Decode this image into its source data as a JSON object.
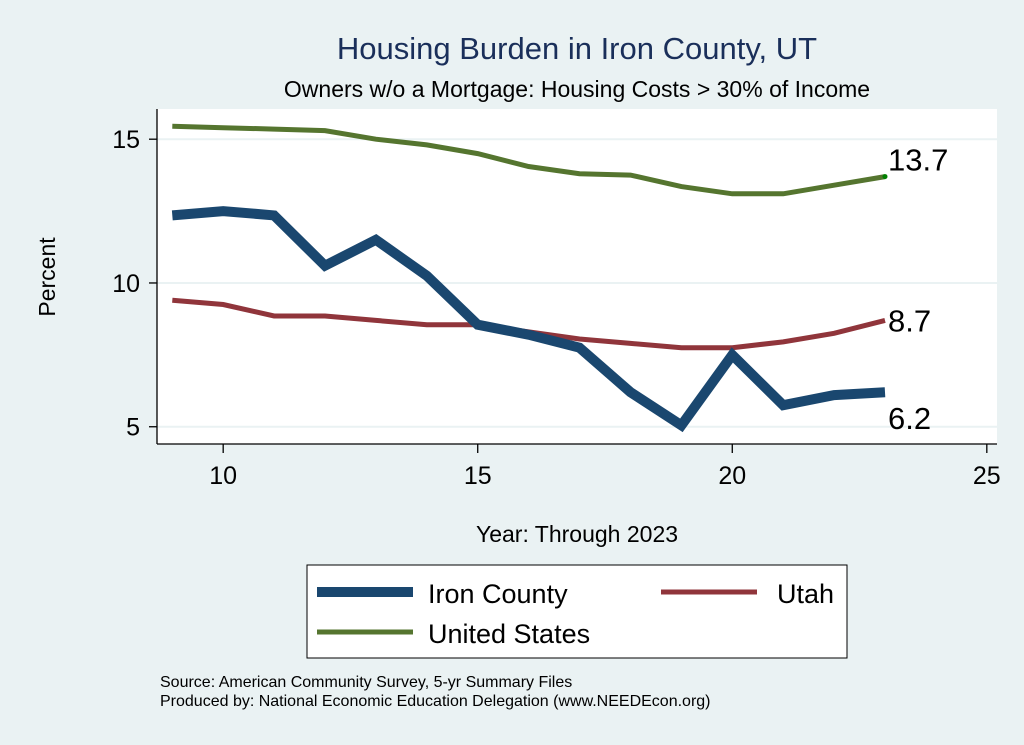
{
  "chart_data": {
    "type": "line",
    "title": "Housing Burden in Iron County, UT",
    "subtitle": "Owners w/o a Mortgage: Housing Costs > 30% of Income",
    "xlabel": "Year: Through 2023",
    "ylabel": "Percent",
    "xlim": [
      8.7,
      25.2
    ],
    "ylim": [
      4.4,
      16.05
    ],
    "xticks": [
      10,
      15,
      20,
      25
    ],
    "yticks": [
      5,
      10,
      15
    ],
    "grid": true,
    "x": [
      9,
      10,
      11,
      12,
      13,
      14,
      15,
      16,
      17,
      18,
      19,
      20,
      21,
      22,
      23
    ],
    "series": [
      {
        "name": "Iron County",
        "color": "#1a476f",
        "values": [
          12.35,
          12.5,
          12.35,
          10.6,
          11.5,
          10.25,
          8.55,
          8.2,
          7.75,
          6.2,
          5.05,
          7.5,
          5.75,
          6.1,
          6.2
        ],
        "end_label": "6.2"
      },
      {
        "name": "Utah",
        "color": "#90353b",
        "values": [
          9.4,
          9.25,
          8.85,
          8.85,
          8.7,
          8.55,
          8.55,
          8.3,
          8.05,
          7.9,
          7.75,
          7.75,
          7.95,
          8.25,
          8.7
        ],
        "end_label": "8.7"
      },
      {
        "name": "United States",
        "color": "#55752f",
        "values": [
          15.45,
          15.4,
          15.35,
          15.3,
          15.0,
          14.8,
          14.5,
          14.05,
          13.8,
          13.75,
          13.35,
          13.1,
          13.1,
          13.4,
          13.7
        ],
        "end_label": "13.7"
      }
    ],
    "legend": {
      "position": "bottom-center",
      "entries": [
        "Iron County",
        "Utah",
        "United States"
      ]
    },
    "notes": [
      "Source: American Community Survey, 5-yr Summary Files",
      "Produced by: National Economic Education Delegation (www.NEEDEcon.org)"
    ]
  },
  "colors": {
    "background": "#eaf2f3",
    "plot_background": "#ffffff",
    "gridline": "#eaf2f3",
    "title": "#1a2f5a",
    "us_endpoint": "#008000"
  }
}
